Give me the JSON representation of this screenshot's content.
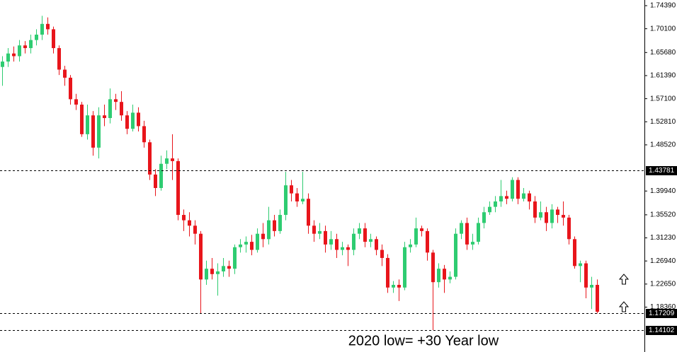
{
  "chart_data": {
    "type": "candlestick",
    "annotation": "2020 low= +30 Year low",
    "up_color": "#2ecc71",
    "down_color": "#e8151b",
    "ylim": [
      1.1173,
      1.7544
    ],
    "yticks": [
      {
        "value": 1.7439,
        "label": "1.74390"
      },
      {
        "value": 1.701,
        "label": "1.70100"
      },
      {
        "value": 1.6568,
        "label": "1.65680"
      },
      {
        "value": 1.6139,
        "label": "1.61390"
      },
      {
        "value": 1.571,
        "label": "1.57100"
      },
      {
        "value": 1.5281,
        "label": "1.52810"
      },
      {
        "value": 1.4852,
        "label": "1.48520"
      },
      {
        "value": 1.3994,
        "label": "1.39940"
      },
      {
        "value": 1.3552,
        "label": "1.35520"
      },
      {
        "value": 1.3123,
        "label": "1.31230"
      },
      {
        "value": 1.2694,
        "label": "1.26940"
      },
      {
        "value": 1.2265,
        "label": "1.22650"
      },
      {
        "value": 1.1836,
        "label": "1.18360"
      }
    ],
    "hlines": [
      1.43781,
      1.17209,
      1.14102
    ],
    "open": [
      1.63,
      1.64,
      1.655,
      1.65,
      1.67,
      1.665,
      1.68,
      1.69,
      1.71,
      1.7,
      1.665,
      1.625,
      1.61,
      1.57,
      1.56,
      1.505,
      1.54,
      1.48,
      1.54,
      1.535,
      1.57,
      1.565,
      1.54,
      1.515,
      1.545,
      1.52,
      1.49,
      1.43,
      1.405,
      1.45,
      1.46,
      1.455,
      1.355,
      1.345,
      1.335,
      1.32,
      1.235,
      1.255,
      1.245,
      1.25,
      1.26,
      1.255,
      1.295,
      1.3,
      1.305,
      1.29,
      1.32,
      1.31,
      1.345,
      1.325,
      1.355,
      1.41,
      1.395,
      1.38,
      1.385,
      1.335,
      1.32,
      1.325,
      1.3,
      1.31,
      1.29,
      1.295,
      1.29,
      1.32,
      1.33,
      1.305,
      1.31,
      1.29,
      1.275,
      1.22,
      1.225,
      1.22,
      1.295,
      1.3,
      1.33,
      1.325,
      1.285,
      1.23,
      1.255,
      1.235,
      1.24,
      1.32,
      1.34,
      1.3,
      1.305,
      1.34,
      1.36,
      1.37,
      1.38,
      1.39,
      1.385,
      1.42,
      1.385,
      1.395,
      1.38,
      1.35,
      1.36,
      1.34,
      1.365,
      1.355,
      1.35,
      1.31,
      1.26,
      1.265,
      1.22,
      1.225
    ],
    "high": [
      1.65,
      1.665,
      1.668,
      1.68,
      1.678,
      1.69,
      1.7,
      1.725,
      1.722,
      1.705,
      1.67,
      1.632,
      1.615,
      1.58,
      1.565,
      1.56,
      1.548,
      1.555,
      1.56,
      1.59,
      1.58,
      1.585,
      1.548,
      1.56,
      1.555,
      1.53,
      1.495,
      1.44,
      1.465,
      1.475,
      1.505,
      1.46,
      1.365,
      1.36,
      1.345,
      1.325,
      1.27,
      1.275,
      1.265,
      1.275,
      1.27,
      1.3,
      1.31,
      1.315,
      1.318,
      1.33,
      1.34,
      1.37,
      1.355,
      1.365,
      1.435,
      1.42,
      1.405,
      1.435,
      1.395,
      1.345,
      1.34,
      1.335,
      1.325,
      1.32,
      1.305,
      1.3,
      1.33,
      1.34,
      1.34,
      1.32,
      1.315,
      1.3,
      1.282,
      1.232,
      1.235,
      1.305,
      1.31,
      1.35,
      1.335,
      1.33,
      1.29,
      1.265,
      1.262,
      1.25,
      1.33,
      1.345,
      1.35,
      1.32,
      1.35,
      1.37,
      1.38,
      1.39,
      1.42,
      1.4,
      1.425,
      1.425,
      1.405,
      1.4,
      1.39,
      1.38,
      1.37,
      1.375,
      1.37,
      1.38,
      1.355,
      1.315,
      1.27,
      1.27,
      1.24,
      1.235
    ],
    "low": [
      1.595,
      1.63,
      1.64,
      1.64,
      1.655,
      1.655,
      1.67,
      1.68,
      1.69,
      1.655,
      1.615,
      1.595,
      1.56,
      1.55,
      1.5,
      1.495,
      1.465,
      1.46,
      1.52,
      1.525,
      1.55,
      1.53,
      1.505,
      1.51,
      1.51,
      1.48,
      1.42,
      1.39,
      1.4,
      1.44,
      1.42,
      1.345,
      1.325,
      1.315,
      1.3,
      1.172,
      1.225,
      1.235,
      1.205,
      1.24,
      1.24,
      1.245,
      1.285,
      1.285,
      1.28,
      1.285,
      1.295,
      1.3,
      1.315,
      1.32,
      1.345,
      1.38,
      1.37,
      1.375,
      1.32,
      1.305,
      1.31,
      1.285,
      1.29,
      1.275,
      1.28,
      1.26,
      1.28,
      1.31,
      1.295,
      1.295,
      1.28,
      1.26,
      1.21,
      1.21,
      1.195,
      1.215,
      1.285,
      1.295,
      1.315,
      1.27,
      1.141,
      1.22,
      1.21,
      1.228,
      1.235,
      1.31,
      1.29,
      1.29,
      1.3,
      1.33,
      1.355,
      1.36,
      1.37,
      1.375,
      1.38,
      1.375,
      1.38,
      1.365,
      1.34,
      1.345,
      1.325,
      1.33,
      1.34,
      1.335,
      1.3,
      1.255,
      1.23,
      1.2,
      1.18,
      1.172
    ],
    "close": [
      1.64,
      1.655,
      1.65,
      1.67,
      1.665,
      1.68,
      1.69,
      1.71,
      1.7,
      1.665,
      1.625,
      1.61,
      1.57,
      1.56,
      1.505,
      1.54,
      1.48,
      1.54,
      1.535,
      1.57,
      1.565,
      1.54,
      1.515,
      1.545,
      1.52,
      1.49,
      1.43,
      1.405,
      1.45,
      1.46,
      1.455,
      1.355,
      1.345,
      1.335,
      1.32,
      1.235,
      1.255,
      1.245,
      1.25,
      1.26,
      1.255,
      1.295,
      1.3,
      1.305,
      1.29,
      1.32,
      1.31,
      1.345,
      1.325,
      1.355,
      1.41,
      1.395,
      1.38,
      1.385,
      1.335,
      1.32,
      1.325,
      1.3,
      1.31,
      1.29,
      1.295,
      1.29,
      1.32,
      1.33,
      1.305,
      1.31,
      1.29,
      1.275,
      1.22,
      1.225,
      1.22,
      1.295,
      1.3,
      1.33,
      1.325,
      1.285,
      1.23,
      1.255,
      1.235,
      1.24,
      1.32,
      1.34,
      1.3,
      1.305,
      1.34,
      1.36,
      1.37,
      1.38,
      1.39,
      1.385,
      1.42,
      1.385,
      1.395,
      1.38,
      1.35,
      1.36,
      1.34,
      1.365,
      1.355,
      1.35,
      1.31,
      1.26,
      1.265,
      1.22,
      1.225,
      1.175
    ]
  }
}
